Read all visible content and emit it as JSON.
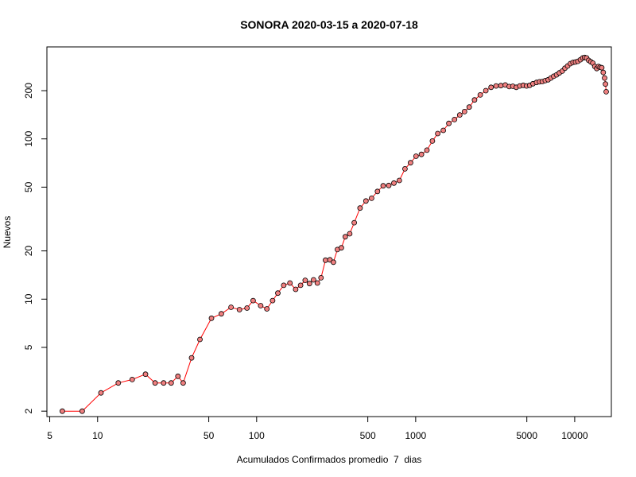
{
  "chart_data": {
    "type": "scatter",
    "title": "SONORA 2020-03-15 a 2020-07-18",
    "xlabel": "Acumulados Confirmados promedio  7  dias",
    "ylabel": "Nuevos",
    "x_scale": "log",
    "y_scale": "log",
    "xlim": [
      4.8,
      17000
    ],
    "ylim": [
      1.85,
      375
    ],
    "x_ticks": [
      5,
      10,
      50,
      100,
      500,
      1000,
      5000,
      10000
    ],
    "x_tick_labels": [
      "5",
      "10",
      "50",
      "100",
      "500",
      "1000",
      "5000",
      "10000"
    ],
    "y_ticks": [
      2,
      5,
      10,
      20,
      50,
      100,
      200
    ],
    "y_tick_labels": [
      "2",
      "5",
      "10",
      "20",
      "50",
      "100",
      "200"
    ],
    "grid": false,
    "line_color": "#ff0000",
    "marker_fill": "#f08080",
    "marker_stroke": "#000000",
    "points": [
      [
        6,
        2
      ],
      [
        8,
        2
      ],
      [
        10.5,
        2.6
      ],
      [
        13.5,
        3
      ],
      [
        16.5,
        3.15
      ],
      [
        20,
        3.4
      ],
      [
        23,
        3
      ],
      [
        26,
        3
      ],
      [
        29,
        3
      ],
      [
        32,
        3.3
      ],
      [
        34.5,
        3
      ],
      [
        39,
        4.3
      ],
      [
        44,
        5.6
      ],
      [
        52,
        7.6
      ],
      [
        60,
        8.1
      ],
      [
        69,
        8.9
      ],
      [
        78,
        8.6
      ],
      [
        87,
        8.8
      ],
      [
        95,
        9.8
      ],
      [
        106,
        9.1
      ],
      [
        116,
        8.7
      ],
      [
        126,
        9.8
      ],
      [
        136,
        10.9
      ],
      [
        148,
        12.2
      ],
      [
        162,
        12.6
      ],
      [
        176,
        11.5
      ],
      [
        189,
        12.2
      ],
      [
        202,
        13.1
      ],
      [
        215,
        12.5
      ],
      [
        228,
        13.2
      ],
      [
        241,
        12.6
      ],
      [
        254,
        13.6
      ],
      [
        271,
        17.5
      ],
      [
        289,
        17.6
      ],
      [
        304,
        17
      ],
      [
        322,
        20.4
      ],
      [
        341,
        20.9
      ],
      [
        361,
        24.5
      ],
      [
        385,
        25.6
      ],
      [
        411,
        30
      ],
      [
        447,
        37
      ],
      [
        487,
        41
      ],
      [
        528,
        42.6
      ],
      [
        575,
        47
      ],
      [
        625,
        51
      ],
      [
        677,
        51.2
      ],
      [
        730,
        53
      ],
      [
        789,
        55
      ],
      [
        857,
        65
      ],
      [
        928,
        71
      ],
      [
        1005,
        78
      ],
      [
        1087,
        80
      ],
      [
        1177,
        85
      ],
      [
        1274,
        97
      ],
      [
        1377,
        108
      ],
      [
        1491,
        113
      ],
      [
        1616,
        125
      ],
      [
        1755,
        132
      ],
      [
        1892,
        141
      ],
      [
        2029,
        148
      ],
      [
        2172,
        158
      ],
      [
        2346,
        175
      ],
      [
        2548,
        188
      ],
      [
        2760,
        200
      ],
      [
        2978,
        210
      ],
      [
        3202,
        214
      ],
      [
        3433,
        215
      ],
      [
        3660,
        217
      ],
      [
        3874,
        212
      ],
      [
        4086,
        213
      ],
      [
        4290,
        210
      ],
      [
        4512,
        214
      ],
      [
        4750,
        216
      ],
      [
        4981,
        214
      ],
      [
        5214,
        216
      ],
      [
        5466,
        221
      ],
      [
        5755,
        225
      ],
      [
        6012,
        227
      ],
      [
        6262,
        228
      ],
      [
        6533,
        231
      ],
      [
        6811,
        234
      ],
      [
        7089,
        240
      ],
      [
        7379,
        246
      ],
      [
        7689,
        251
      ],
      [
        8012,
        258
      ],
      [
        8354,
        265
      ],
      [
        8679,
        276
      ],
      [
        9029,
        285
      ],
      [
        9398,
        295
      ],
      [
        9759,
        300
      ],
      [
        10111,
        302
      ],
      [
        10474,
        305
      ],
      [
        10865,
        312
      ],
      [
        11235,
        320
      ],
      [
        11545,
        322
      ],
      [
        11891,
        320
      ],
      [
        12238,
        309
      ],
      [
        12611,
        303
      ],
      [
        13001,
        297
      ],
      [
        13379,
        283
      ],
      [
        13759,
        275
      ],
      [
        14101,
        283
      ],
      [
        14442,
        280
      ],
      [
        14798,
        278
      ],
      [
        15120,
        260
      ],
      [
        15408,
        240
      ],
      [
        15616,
        220
      ],
      [
        15780,
        197
      ]
    ]
  }
}
